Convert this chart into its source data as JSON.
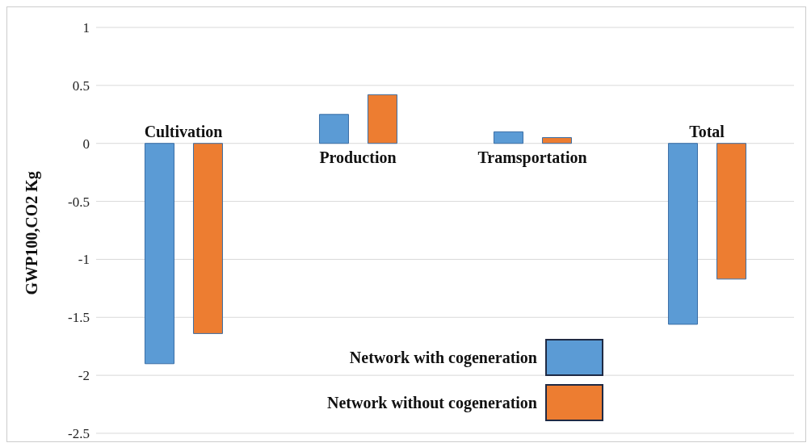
{
  "chart_data": {
    "type": "bar",
    "ylabel": "GWP100,CO2 Kg",
    "categories": [
      "Cultivation",
      "Production",
      "Tramsportation",
      "Total"
    ],
    "series": [
      {
        "name": "Network with cogeneration",
        "color": "#5b9bd5",
        "values": [
          -1.9,
          0.25,
          0.1,
          -1.56
        ]
      },
      {
        "name": "Network without cogeneration",
        "color": "#ed7d31",
        "values": [
          -1.64,
          0.42,
          0.05,
          -1.17
        ]
      }
    ],
    "ylim": [
      -2.5,
      1
    ],
    "yticks": [
      -2.5,
      -2,
      -1.5,
      -1,
      -0.5,
      0,
      0.5,
      1
    ],
    "grid": "y",
    "legend": "bottom right"
  }
}
